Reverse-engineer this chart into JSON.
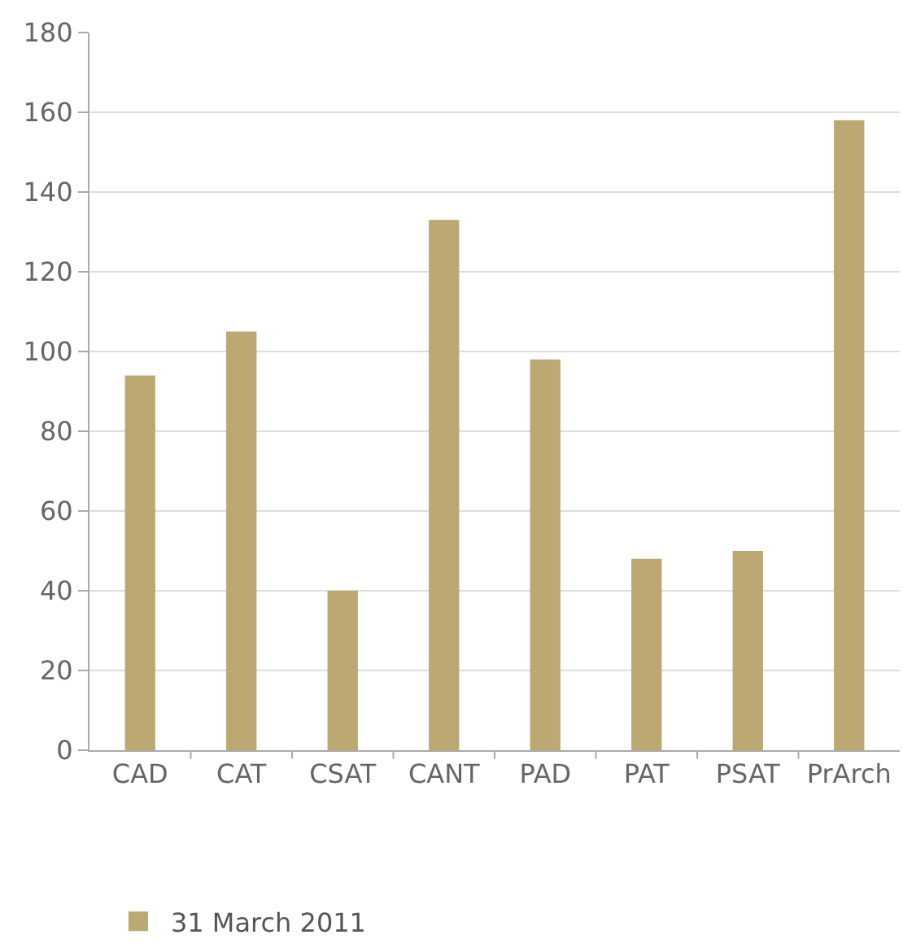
{
  "chart_data": {
    "type": "bar",
    "categories": [
      "CAD",
      "CAT",
      "CSAT",
      "CANT",
      "PAD",
      "PAT",
      "PSAT",
      "PrArch"
    ],
    "series": [
      {
        "name": "31 March 2011",
        "color": "#bba872",
        "values": [
          94,
          105,
          40,
          133,
          98,
          48,
          50,
          158
        ]
      }
    ],
    "ylim": [
      0,
      180
    ],
    "yticks": [
      0,
      20,
      40,
      60,
      80,
      100,
      120,
      140,
      160,
      180
    ],
    "grid": "y",
    "legend": "bottom left"
  }
}
